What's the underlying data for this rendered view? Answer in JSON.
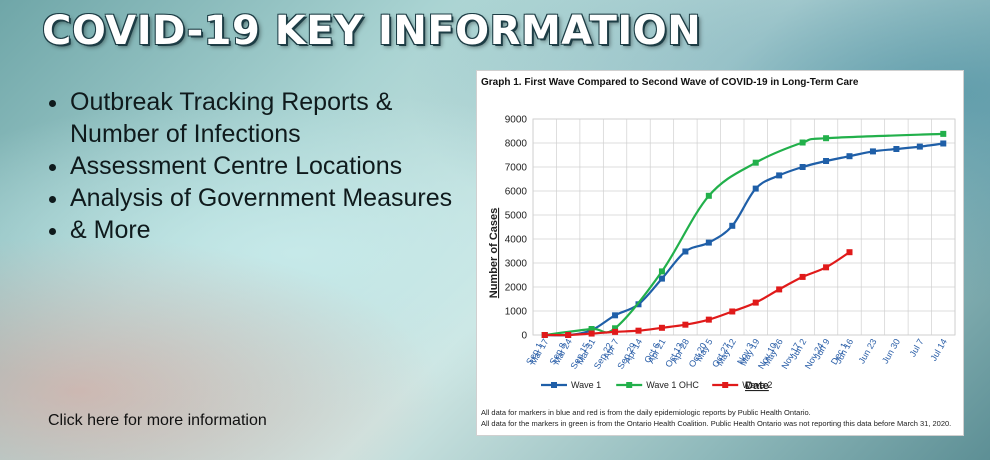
{
  "hero": {
    "title": "COVID-19 KEY INFORMATION",
    "bullets": [
      "Outbreak Tracking Reports & Number of Infections",
      "Assessment Centre Locations",
      "Analysis of Government Measures",
      "& More"
    ],
    "link_text": "Click here for more information"
  },
  "chart_data": {
    "type": "line",
    "title": "Graph 1. First Wave Compared to Second Wave of COVID-19 in Long-Term Care",
    "xlabel": "Date",
    "ylabel": "Number of Cases",
    "ylim": [
      0,
      9000
    ],
    "yticks": [
      "0",
      "1000",
      "2000",
      "3000",
      "4000",
      "5000",
      "6000",
      "7000",
      "8000",
      "9000"
    ],
    "grid": true,
    "legend_position": "bottom",
    "x_labels_wave1": [
      "Mar 17",
      "Mar 24",
      "Mar 31",
      "Apr 7",
      "Apr 14",
      "Apr 21",
      "Apr 28",
      "May 5",
      "May 12",
      "May 19",
      "May 26",
      "Jun 2",
      "Jun 9",
      "Jun 16",
      "Jun 23",
      "Jun 30",
      "Jul 7",
      "Jul 14"
    ],
    "x_labels_wave2": [
      "Sep 1",
      "Sep 8",
      "Sep 15",
      "Sep 22",
      "Sep 29",
      "Oct 6",
      "Oct 13",
      "Oct 20",
      "Oct 27",
      "Nov 3",
      "Nov 10",
      "Nov 17",
      "Nov 24",
      "Dec 1"
    ],
    "series": [
      {
        "name": "Wave 1",
        "color": "#1f5fa8",
        "values": [
          0,
          0,
          200,
          820,
          1280,
          2350,
          3480,
          3850,
          4550,
          6100,
          6650,
          7000,
          7250,
          7450,
          7650,
          7750,
          7850,
          7980
        ]
      },
      {
        "name": "Wave 1 OHC",
        "color": "#22b04b",
        "values": [
          0,
          null,
          250,
          280,
          null,
          2650,
          null,
          5800,
          null,
          7180,
          null,
          8020,
          8200,
          null,
          null,
          null,
          null,
          8380
        ]
      },
      {
        "name": "Wave 2",
        "color": "#e01a1a",
        "values": [
          0,
          0,
          60,
          130,
          180,
          300,
          430,
          640,
          980,
          1350,
          1900,
          2420,
          2820,
          3450
        ]
      }
    ],
    "notes": [
      "All data for markers in blue and red is from the daily epidemiologic reports by Public Health Ontario.",
      "All data for the markers in green is from the Ontario Health Coalition. Public Health Ontario was not reporting this data before March 31, 2020."
    ]
  }
}
